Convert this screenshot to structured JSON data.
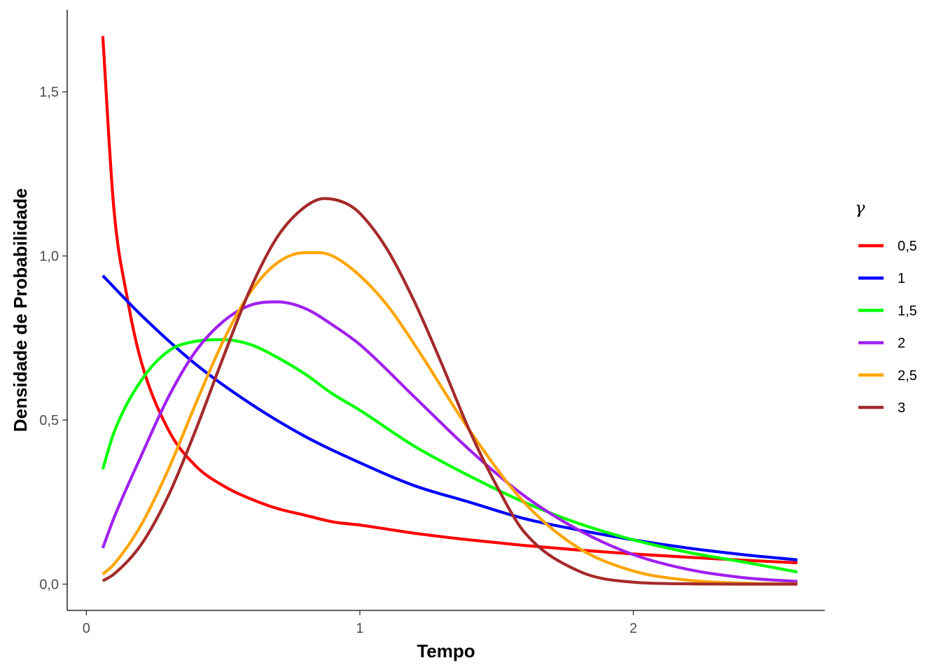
{
  "chart_data": {
    "type": "line",
    "xlabel": "Tempo",
    "ylabel": "Densidade de Probabilidade",
    "xlim": [
      -0.07,
      2.7
    ],
    "ylim": [
      -0.08,
      1.75
    ],
    "x_ticks": [
      {
        "value": 0,
        "label": "0"
      },
      {
        "value": 1,
        "label": "1"
      },
      {
        "value": 2,
        "label": "2"
      }
    ],
    "y_ticks": [
      {
        "value": 0.0,
        "label": "0,0"
      },
      {
        "value": 0.5,
        "label": "0,5"
      },
      {
        "value": 1.0,
        "label": "1,0"
      },
      {
        "value": 1.5,
        "label": "1,5"
      }
    ],
    "grid": false,
    "legend": {
      "title": "γ",
      "placement": "right"
    },
    "series": [
      {
        "name": "0,5",
        "color": "#FF0000",
        "x": [
          0.06,
          0.1,
          0.15,
          0.2,
          0.3,
          0.4,
          0.5,
          0.6,
          0.7,
          0.8,
          0.9,
          1.0,
          1.2,
          1.4,
          1.6,
          1.8,
          2.0,
          2.2,
          2.4,
          2.6
        ],
        "y": [
          1.67,
          1.15,
          0.87,
          0.68,
          0.47,
          0.36,
          0.3,
          0.26,
          0.23,
          0.21,
          0.19,
          0.18,
          0.155,
          0.135,
          0.118,
          0.104,
          0.092,
          0.082,
          0.073,
          0.065
        ]
      },
      {
        "name": "1",
        "color": "#0000FF",
        "x": [
          0.06,
          0.2,
          0.4,
          0.6,
          0.8,
          1.0,
          1.2,
          1.4,
          1.6,
          1.8,
          2.0,
          2.2,
          2.4,
          2.6
        ],
        "y": [
          0.94,
          0.82,
          0.67,
          0.55,
          0.45,
          0.37,
          0.3,
          0.25,
          0.2,
          0.165,
          0.135,
          0.11,
          0.09,
          0.074
        ]
      },
      {
        "name": "1,5",
        "color": "#00FF00",
        "x": [
          0.06,
          0.1,
          0.2,
          0.3,
          0.4,
          0.5,
          0.6,
          0.7,
          0.8,
          0.9,
          1.0,
          1.2,
          1.4,
          1.6,
          1.8,
          2.0,
          2.2,
          2.4,
          2.6
        ],
        "y": [
          0.35,
          0.46,
          0.62,
          0.71,
          0.74,
          0.745,
          0.73,
          0.69,
          0.64,
          0.58,
          0.53,
          0.42,
          0.33,
          0.25,
          0.185,
          0.135,
          0.097,
          0.068,
          0.037
        ]
      },
      {
        "name": "2",
        "color": "#A020F0",
        "x": [
          0.06,
          0.1,
          0.2,
          0.3,
          0.4,
          0.5,
          0.6,
          0.7,
          0.8,
          0.9,
          1.0,
          1.2,
          1.4,
          1.6,
          1.8,
          2.0,
          2.2,
          2.4,
          2.6
        ],
        "y": [
          0.11,
          0.2,
          0.39,
          0.57,
          0.71,
          0.8,
          0.85,
          0.86,
          0.84,
          0.79,
          0.73,
          0.57,
          0.41,
          0.27,
          0.165,
          0.09,
          0.045,
          0.02,
          0.008
        ]
      },
      {
        "name": "2,5",
        "color": "#FFA500",
        "x": [
          0.06,
          0.1,
          0.2,
          0.3,
          0.4,
          0.5,
          0.6,
          0.7,
          0.8,
          0.85,
          0.9,
          1.0,
          1.1,
          1.2,
          1.4,
          1.6,
          1.8,
          2.0,
          2.2,
          2.4,
          2.6
        ],
        "y": [
          0.03,
          0.06,
          0.18,
          0.35,
          0.55,
          0.74,
          0.89,
          0.98,
          1.01,
          1.01,
          1.0,
          0.94,
          0.85,
          0.73,
          0.47,
          0.25,
          0.11,
          0.04,
          0.012,
          0.003,
          0.001
        ]
      },
      {
        "name": "3",
        "color": "#A52A2A",
        "x": [
          0.06,
          0.1,
          0.2,
          0.3,
          0.4,
          0.5,
          0.6,
          0.7,
          0.8,
          0.87,
          0.95,
          1.0,
          1.1,
          1.2,
          1.3,
          1.4,
          1.5,
          1.6,
          1.8,
          2.0,
          2.2,
          2.4,
          2.6
        ],
        "y": [
          0.01,
          0.03,
          0.12,
          0.27,
          0.47,
          0.69,
          0.9,
          1.06,
          1.15,
          1.175,
          1.16,
          1.13,
          1.02,
          0.86,
          0.67,
          0.47,
          0.3,
          0.16,
          0.04,
          0.006,
          0.001,
          0.0,
          0.0
        ]
      }
    ]
  }
}
